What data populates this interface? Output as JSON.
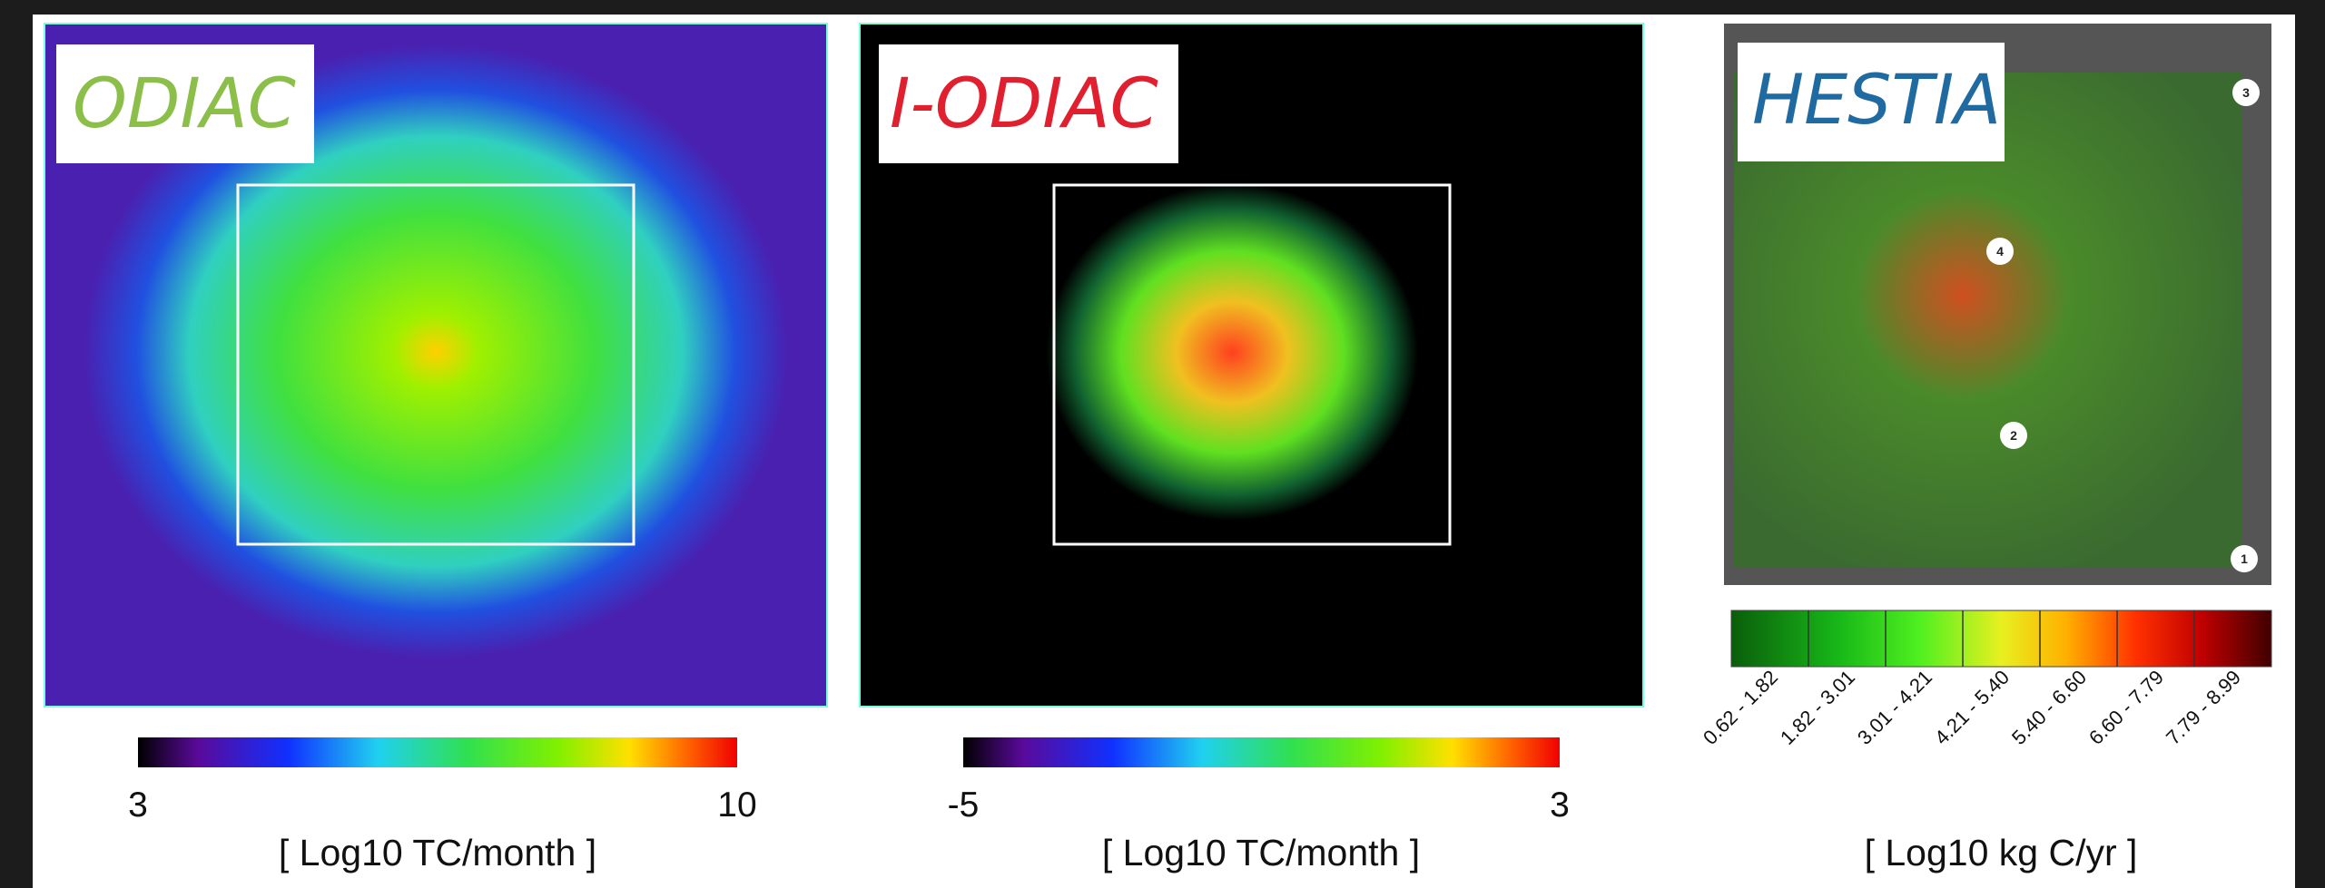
{
  "panels": [
    {
      "label": "ODIAC",
      "colorbar": {
        "ticks": [
          "3",
          "10"
        ],
        "unit": "[ Log10 TC/month ]"
      }
    },
    {
      "label": "I-ODIAC",
      "colorbar": {
        "ticks": [
          "-5",
          "3"
        ],
        "unit": "[ Log10 TC/month ]"
      }
    },
    {
      "label": "HESTIA",
      "markers": [
        "1",
        "2",
        "3",
        "4"
      ],
      "colorbar": {
        "bins": [
          "0.62 - 1.82",
          "1.82 - 3.01",
          "3.01 - 4.21",
          "4.21 - 5.40",
          "5.40 - 6.60",
          "6.60 - 7.79",
          "7.79 - 8.99"
        ],
        "unit": "[ Log10 kg C/yr ]"
      }
    }
  ]
}
